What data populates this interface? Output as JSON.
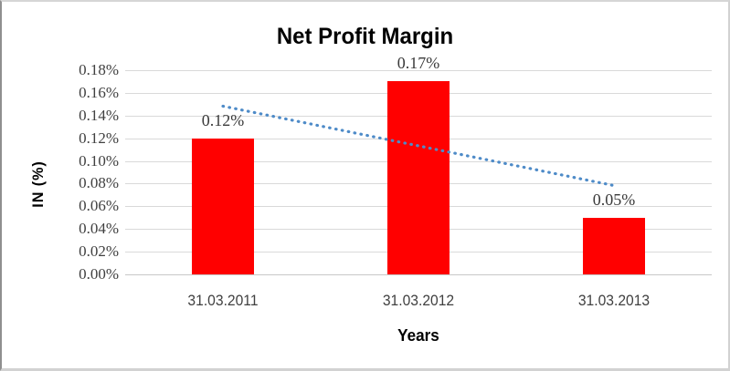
{
  "window": {
    "background": "#ffffff",
    "frame_border_color": "#d2d2d2",
    "frame_left_border_color": "#8f8f8f"
  },
  "chart_data": {
    "type": "bar",
    "title": "Net Profit Margin",
    "title_color": "#595959",
    "categories": [
      "31.03.2011",
      "31.03.2012",
      "31.03.2013"
    ],
    "values": [
      0.12,
      0.17,
      0.05
    ],
    "data_labels": [
      "0.12%",
      "0.17%",
      "0.05%"
    ],
    "data_label_color": "#3a3a3a",
    "bar_color": "#ff0000",
    "xlabel": "Years",
    "ylabel": "IN (%)",
    "axis_title_color": "#595959",
    "ylim": [
      0,
      0.0018
    ],
    "ytick_step": 0.0002,
    "ytick_labels_top_to_bottom": [
      "0.18%",
      "0.16%",
      "0.14%",
      "0.12%",
      "0.10%",
      "0.08%",
      "0.06%",
      "0.04%",
      "0.02%",
      "0.00%"
    ],
    "tick_label_color": "#404040",
    "grid": true,
    "gridline_color": "#d9d9d9",
    "baseline_color": "#c8c8c8",
    "legend_position": "none",
    "trendline": {
      "style": "dotted",
      "color": "#4e8bc8",
      "start_value_pct": 0.1483,
      "end_value_pct": 0.0783
    }
  }
}
